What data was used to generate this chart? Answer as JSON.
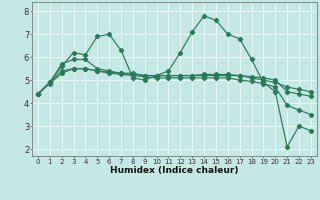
{
  "xlabel": "Humidex (Indice chaleur)",
  "x": [
    0,
    1,
    2,
    3,
    4,
    5,
    6,
    7,
    8,
    9,
    10,
    11,
    12,
    13,
    14,
    15,
    16,
    17,
    18,
    19,
    20,
    21,
    22,
    23
  ],
  "line1": [
    4.4,
    4.9,
    5.6,
    6.2,
    6.1,
    6.9,
    7.0,
    6.3,
    5.1,
    5.0,
    5.2,
    5.4,
    6.2,
    7.1,
    7.8,
    7.6,
    7.0,
    6.8,
    5.9,
    4.9,
    4.5,
    2.1,
    3.0,
    2.8
  ],
  "line2": [
    4.4,
    4.9,
    5.7,
    5.9,
    5.9,
    5.5,
    5.4,
    5.3,
    5.3,
    5.2,
    5.2,
    5.2,
    5.2,
    5.2,
    5.2,
    5.2,
    5.2,
    5.2,
    5.1,
    5.0,
    4.9,
    4.7,
    4.6,
    4.5
  ],
  "line3": [
    4.4,
    4.85,
    5.3,
    5.5,
    5.5,
    5.4,
    5.35,
    5.3,
    5.25,
    5.2,
    5.2,
    5.2,
    5.2,
    5.2,
    5.25,
    5.25,
    5.25,
    5.2,
    5.15,
    5.1,
    5.0,
    4.5,
    4.4,
    4.3
  ],
  "line4": [
    4.4,
    4.9,
    5.4,
    5.5,
    5.5,
    5.4,
    5.3,
    5.25,
    5.2,
    5.15,
    5.1,
    5.1,
    5.1,
    5.1,
    5.1,
    5.1,
    5.1,
    5.0,
    4.95,
    4.85,
    4.7,
    3.9,
    3.7,
    3.5
  ],
  "color": "#2a7a5a",
  "bg_color": "#c5e8e5",
  "grid_color": "#e8f8f8",
  "ylim": [
    1.7,
    8.4
  ],
  "yticks": [
    2,
    3,
    4,
    5,
    6,
    7,
    8
  ],
  "xtick_labels": [
    "0",
    "1",
    "2",
    "3",
    "4",
    "5",
    "6",
    "7",
    "8",
    "9",
    "10",
    "11",
    "12",
    "13",
    "14",
    "15",
    "16",
    "17",
    "18",
    "19",
    "20",
    "21",
    "22",
    "23"
  ]
}
